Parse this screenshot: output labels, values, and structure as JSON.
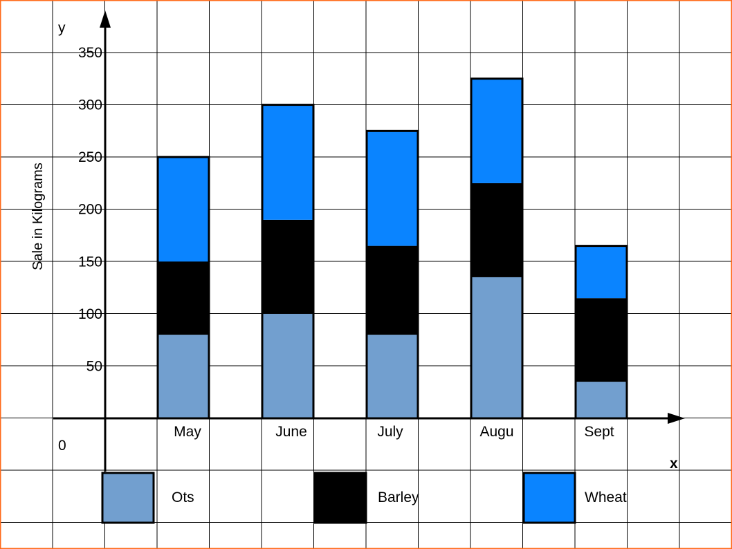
{
  "chart_data": {
    "type": "bar",
    "stacked": true,
    "categories": [
      "May",
      "June",
      "July",
      "Augu",
      "Sept"
    ],
    "series": [
      {
        "name": "Ots",
        "color": "#729fcf",
        "values": [
          80,
          100,
          80,
          135,
          35
        ]
      },
      {
        "name": "Barley",
        "color": "#000000",
        "values": [
          70,
          90,
          85,
          90,
          80
        ]
      },
      {
        "name": "Wheat",
        "color": "#0a84ff",
        "values": [
          100,
          110,
          110,
          100,
          50
        ]
      }
    ],
    "ylabel": "Sale in Kilograms",
    "x_axis_letter": "x",
    "y_axis_letter": "y",
    "origin_label": "0",
    "ylim": [
      0,
      350
    ],
    "yticks": [
      {
        "value": 50,
        "label": "50"
      },
      {
        "value": 100,
        "label": "100"
      },
      {
        "value": 150,
        "label": "150"
      },
      {
        "value": 200,
        "label": "200"
      },
      {
        "value": 250,
        "label": "250"
      },
      {
        "value": 300,
        "label": "300"
      },
      {
        "value": 350,
        "label": "350"
      }
    ],
    "grid": true,
    "legend_position": "bottom",
    "border_color": "#ff6a1a"
  }
}
